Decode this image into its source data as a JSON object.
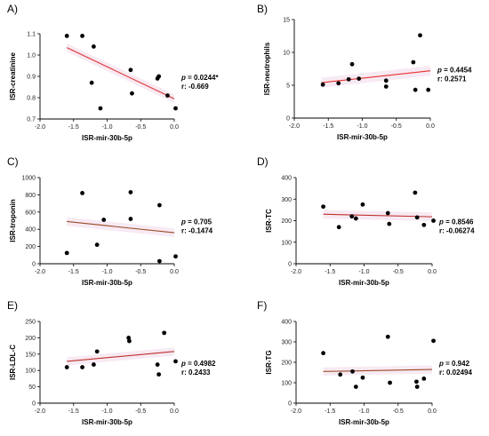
{
  "chart_data": [
    {
      "panel": "A)",
      "type": "scatter",
      "xlabel": "ISR-mir-30b-5p",
      "ylabel": "ISR-creatinine",
      "xlim": [
        -2.0,
        0.0
      ],
      "ylim": [
        0.7,
        1.1
      ],
      "xticks": [
        "-2.0",
        "-1.5",
        "-1.0",
        "-0.5",
        "0.0"
      ],
      "yticks": [
        "0.7",
        "0.8",
        "0.9",
        "1.0",
        "1.1"
      ],
      "points": [
        [
          -1.6,
          1.09
        ],
        [
          -1.37,
          1.09
        ],
        [
          -1.2,
          1.04
        ],
        [
          -1.23,
          0.87
        ],
        [
          -1.1,
          0.75
        ],
        [
          -0.65,
          0.93
        ],
        [
          -0.63,
          0.82
        ],
        [
          -0.25,
          0.89
        ],
        [
          -0.23,
          0.9
        ],
        [
          -0.1,
          0.81
        ],
        [
          0.02,
          0.75
        ]
      ],
      "fit": {
        "x": [
          -1.6,
          0.0
        ],
        "y": [
          1.035,
          0.795
        ]
      },
      "fit_color": "#e8312f",
      "p_text": "p = 0.0244*",
      "r_text": "r: -0.669"
    },
    {
      "panel": "B)",
      "type": "scatter",
      "xlabel": "ISR-mir-30b-5p",
      "ylabel": "ISR-neutrophils",
      "xlim": [
        -2.0,
        0.0
      ],
      "ylim": [
        0,
        15
      ],
      "xticks": [
        "-2.0",
        "-1.5",
        "-1.0",
        "-0.5",
        "0.0"
      ],
      "yticks": [
        "0",
        "5",
        "10",
        "15"
      ],
      "points": [
        [
          -1.58,
          5.1
        ],
        [
          -1.35,
          5.3
        ],
        [
          -1.2,
          5.9
        ],
        [
          -1.15,
          8.2
        ],
        [
          -1.05,
          6.0
        ],
        [
          -0.65,
          4.8
        ],
        [
          -0.65,
          5.7
        ],
        [
          -0.25,
          8.5
        ],
        [
          -0.22,
          4.3
        ],
        [
          -0.15,
          12.6
        ],
        [
          -0.03,
          4.3
        ]
      ],
      "fit": {
        "x": [
          -1.6,
          0.0
        ],
        "y": [
          5.4,
          7.2
        ]
      },
      "fit_color": "#e8312f",
      "p_text": "p = 0.4454",
      "r_text": "r: 0.2571"
    },
    {
      "panel": "C)",
      "type": "scatter",
      "xlabel": "ISR-mir-30b-5p",
      "ylabel": "ISR-troponin",
      "xlim": [
        -2.0,
        0.0
      ],
      "ylim": [
        0,
        1000
      ],
      "xticks": [
        "-2.0",
        "-1.5",
        "-1.0",
        "-0.5",
        "0.0"
      ],
      "yticks": [
        "0",
        "200",
        "400",
        "600",
        "800",
        "1000"
      ],
      "points": [
        [
          -1.6,
          125
        ],
        [
          -1.37,
          820
        ],
        [
          -1.15,
          220
        ],
        [
          -1.05,
          510
        ],
        [
          -0.65,
          830
        ],
        [
          -0.65,
          520
        ],
        [
          -0.22,
          680
        ],
        [
          -0.22,
          30
        ],
        [
          0.02,
          85
        ]
      ],
      "fit": {
        "x": [
          -1.6,
          0.0
        ],
        "y": [
          490,
          360
        ]
      },
      "fit_color": "#9a4a25",
      "p_text": "p = 0.705",
      "r_text": "r: -0.1474"
    },
    {
      "panel": "D)",
      "type": "scatter",
      "xlabel": "ISR-mir-30b-5p",
      "ylabel": "ISR-TC",
      "xlim": [
        -2.0,
        0.0
      ],
      "ylim": [
        0,
        400
      ],
      "xticks": [
        "-2.0",
        "-1.5",
        "-1.0",
        "-0.5",
        "0.0"
      ],
      "yticks": [
        "0",
        "100",
        "200",
        "300",
        "400"
      ],
      "points": [
        [
          -1.6,
          265
        ],
        [
          -1.37,
          170
        ],
        [
          -1.18,
          220
        ],
        [
          -1.12,
          210
        ],
        [
          -1.02,
          275
        ],
        [
          -0.65,
          235
        ],
        [
          -0.63,
          185
        ],
        [
          -0.25,
          330
        ],
        [
          -0.22,
          215
        ],
        [
          -0.12,
          180
        ],
        [
          0.02,
          200
        ]
      ],
      "fit": {
        "x": [
          -1.6,
          0.0
        ],
        "y": [
          230,
          218
        ]
      },
      "fit_color": "#c0312b",
      "p_text": "p = 0.8546",
      "r_text": "r: -0.06274"
    },
    {
      "panel": "E)",
      "type": "scatter",
      "xlabel": "ISR-mir-30b-5p",
      "ylabel": "ISR-LDL-C",
      "xlim": [
        -2.0,
        0.0
      ],
      "ylim": [
        0,
        250
      ],
      "xticks": [
        "-2.0",
        "-1.5",
        "-1.0",
        "-0.5",
        "0.0"
      ],
      "yticks": [
        "0",
        "50",
        "100",
        "150",
        "200",
        "250"
      ],
      "points": [
        [
          -1.6,
          110
        ],
        [
          -1.37,
          110
        ],
        [
          -1.2,
          118
        ],
        [
          -1.15,
          158
        ],
        [
          -0.68,
          200
        ],
        [
          -0.67,
          190
        ],
        [
          -0.25,
          118
        ],
        [
          -0.23,
          88
        ],
        [
          -0.15,
          215
        ],
        [
          0.02,
          128
        ]
      ],
      "fit": {
        "x": [
          -1.6,
          0.0
        ],
        "y": [
          128,
          158
        ]
      },
      "fit_color": "#c0312b",
      "p_text": "p = 0.4982",
      "r_text": "r: 0.2433"
    },
    {
      "panel": "F)",
      "type": "scatter",
      "xlabel": "ISR-mir-30b-5p",
      "ylabel": "ISR-TG",
      "xlim": [
        -2.0,
        0.0
      ],
      "ylim": [
        0,
        400
      ],
      "xticks": [
        "-2.0",
        "-1.5",
        "-1.0",
        "-0.5",
        "0.0"
      ],
      "yticks": [
        "0",
        "100",
        "200",
        "300",
        "400"
      ],
      "points": [
        [
          -1.6,
          245
        ],
        [
          -1.35,
          140
        ],
        [
          -1.17,
          155
        ],
        [
          -1.12,
          80
        ],
        [
          -1.02,
          125
        ],
        [
          -0.65,
          325
        ],
        [
          -0.62,
          100
        ],
        [
          -0.23,
          105
        ],
        [
          -0.22,
          80
        ],
        [
          -0.12,
          120
        ],
        [
          0.02,
          305
        ]
      ],
      "fit": {
        "x": [
          -1.6,
          0.0
        ],
        "y": [
          155,
          165
        ]
      },
      "fit_color": "#9a4a25",
      "p_text": "p = 0.942",
      "r_text": "r: 0.02494"
    }
  ]
}
